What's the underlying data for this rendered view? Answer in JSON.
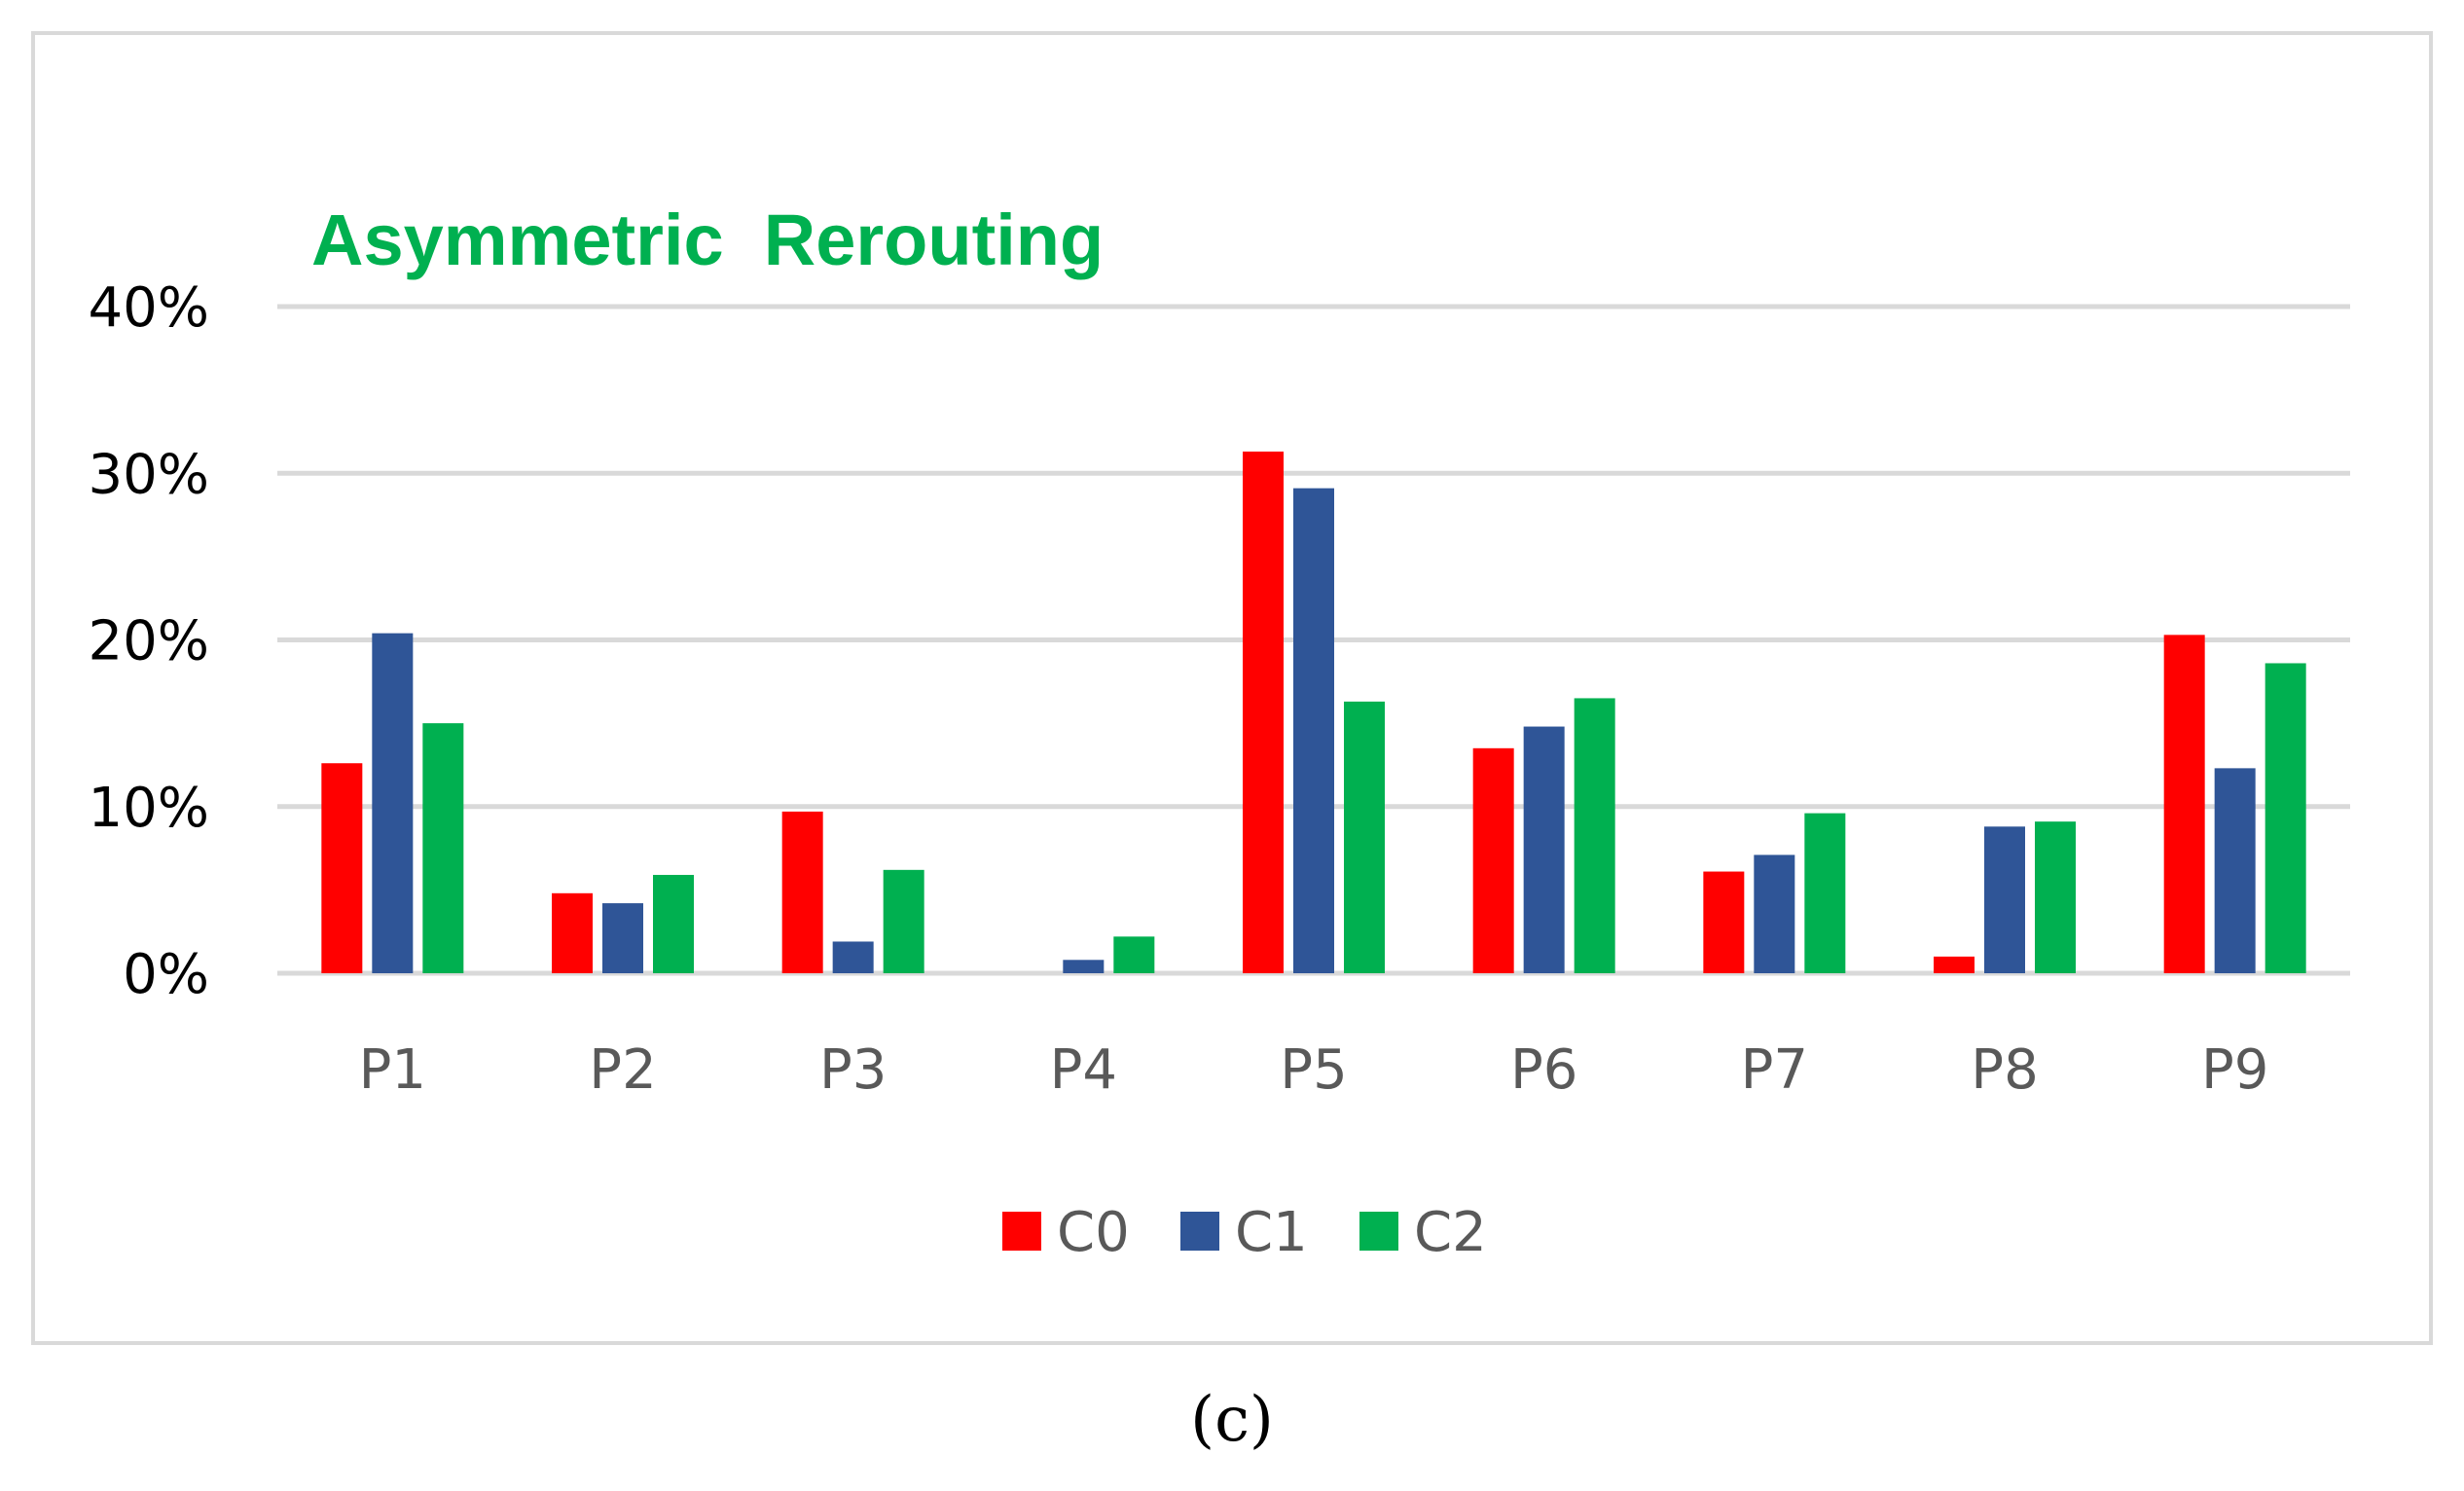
{
  "chart_data": {
    "type": "bar",
    "title": "Asymmetric  Rerouting",
    "caption": "(c)",
    "xlabel": "",
    "ylabel": "",
    "ylim": [
      0,
      40
    ],
    "yticks": [
      "0%",
      "10%",
      "20%",
      "30%",
      "40%"
    ],
    "ytick_values": [
      0,
      10,
      20,
      30,
      40
    ],
    "grid": true,
    "legend_position": "bottom",
    "categories": [
      "P1",
      "P2",
      "P3",
      "P4",
      "P5",
      "P6",
      "P7",
      "P8",
      "P9"
    ],
    "series": [
      {
        "name": "C0",
        "color": "#ff0000",
        "values": [
          12.6,
          4.8,
          9.7,
          0,
          31.3,
          13.5,
          6.1,
          1.0,
          20.3
        ]
      },
      {
        "name": "C1",
        "color": "#2f5597",
        "values": [
          20.4,
          4.2,
          1.9,
          0.8,
          29.1,
          14.8,
          7.1,
          8.8,
          12.3
        ]
      },
      {
        "name": "C2",
        "color": "#00b050",
        "values": [
          15.0,
          5.9,
          6.2,
          2.2,
          16.3,
          16.5,
          9.6,
          9.1,
          18.6
        ]
      }
    ]
  }
}
